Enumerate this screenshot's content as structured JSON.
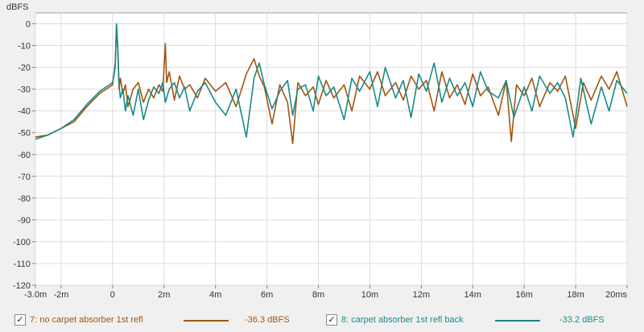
{
  "chart_data": {
    "type": "line",
    "ylabel": "dBFS",
    "x_unit": "ms",
    "xlim": [
      -3.0,
      20.0
    ],
    "ylim": [
      -120,
      5
    ],
    "x_ticks": [
      {
        "v": -3.0,
        "label": "-3.0m"
      },
      {
        "v": -2,
        "label": "-2m"
      },
      {
        "v": 0,
        "label": "0"
      },
      {
        "v": 2,
        "label": "2m"
      },
      {
        "v": 4,
        "label": "4m"
      },
      {
        "v": 6,
        "label": "6m"
      },
      {
        "v": 8,
        "label": "8m"
      },
      {
        "v": 10,
        "label": "10m"
      },
      {
        "v": 12,
        "label": "12m"
      },
      {
        "v": 14,
        "label": "14m"
      },
      {
        "v": 16,
        "label": "16m"
      },
      {
        "v": 18,
        "label": "18m"
      },
      {
        "v": 20,
        "label": "20ms"
      }
    ],
    "y_ticks": [
      0,
      -10,
      -20,
      -30,
      -40,
      -50,
      -60,
      -70,
      -80,
      -90,
      -100,
      -110,
      -120
    ],
    "grid": true,
    "series": [
      {
        "name": "7: no carpet absorber 1st refl",
        "color": "#a0560f",
        "legend_value": "-36.3 dBFS",
        "x": [
          -3.0,
          -2.5,
          -2.0,
          -1.5,
          -1.0,
          -0.5,
          0.0,
          0.1,
          0.15,
          0.2,
          0.25,
          0.3,
          0.4,
          0.5,
          0.6,
          0.8,
          1.0,
          1.2,
          1.4,
          1.6,
          1.8,
          1.95,
          2.05,
          2.1,
          2.2,
          2.4,
          2.6,
          2.8,
          3.0,
          3.3,
          3.6,
          4.0,
          4.4,
          4.8,
          5.2,
          5.5,
          5.7,
          5.9,
          6.2,
          6.5,
          6.8,
          7.0,
          7.2,
          7.5,
          7.8,
          8.0,
          8.3,
          8.6,
          9.0,
          9.3,
          9.6,
          10.0,
          10.3,
          10.6,
          11.0,
          11.3,
          11.6,
          11.9,
          12.2,
          12.5,
          12.8,
          13.1,
          13.4,
          13.7,
          14.0,
          14.3,
          14.6,
          15.0,
          15.3,
          15.5,
          15.7,
          16.0,
          16.3,
          16.6,
          17.0,
          17.3,
          17.6,
          18.0,
          18.3,
          18.6,
          19.0,
          19.3,
          19.6,
          20.0
        ],
        "y": [
          -52,
          -51,
          -48,
          -45,
          -38,
          -32,
          -28,
          -18,
          -1,
          -12,
          -30,
          -25,
          -32,
          -28,
          -38,
          -30,
          -27,
          -36,
          -30,
          -34,
          -28,
          -31,
          -9,
          -27,
          -22,
          -35,
          -24,
          -30,
          -28,
          -34,
          -25,
          -31,
          -27,
          -38,
          -23,
          -16,
          -24,
          -29,
          -46,
          -28,
          -36,
          -55,
          -27,
          -33,
          -29,
          -37,
          -26,
          -34,
          -28,
          -40,
          -24,
          -30,
          -22,
          -33,
          -27,
          -35,
          -24,
          -30,
          -26,
          -40,
          -22,
          -34,
          -28,
          -37,
          -23,
          -33,
          -29,
          -42,
          -26,
          -54,
          -28,
          -33,
          -25,
          -38,
          -27,
          -31,
          -24,
          -48,
          -27,
          -35,
          -24,
          -30,
          -22,
          -38
        ]
      },
      {
        "name": "8: carpet absorber 1st refl back",
        "color": "#1a8a8a",
        "legend_value": "-33.2 dBFS",
        "x": [
          -3.0,
          -2.5,
          -2.0,
          -1.5,
          -1.0,
          -0.5,
          0.0,
          0.1,
          0.15,
          0.2,
          0.25,
          0.3,
          0.4,
          0.5,
          0.6,
          0.8,
          1.0,
          1.2,
          1.4,
          1.6,
          1.8,
          1.95,
          2.05,
          2.2,
          2.4,
          2.6,
          2.8,
          3.0,
          3.3,
          3.6,
          4.0,
          4.4,
          4.8,
          5.2,
          5.5,
          5.7,
          5.9,
          6.2,
          6.5,
          6.8,
          7.0,
          7.2,
          7.5,
          7.8,
          8.0,
          8.3,
          8.6,
          9.0,
          9.3,
          9.6,
          10.0,
          10.3,
          10.6,
          11.0,
          11.3,
          11.6,
          11.9,
          12.2,
          12.5,
          12.8,
          13.1,
          13.4,
          13.7,
          14.0,
          14.3,
          14.6,
          15.0,
          15.3,
          15.6,
          16.0,
          16.3,
          16.6,
          17.0,
          17.3,
          17.6,
          17.9,
          18.2,
          18.6,
          19.0,
          19.3,
          19.6,
          20.0
        ],
        "y": [
          -53,
          -51,
          -48,
          -44,
          -37,
          -31,
          -27,
          -20,
          0,
          -10,
          -28,
          -34,
          -30,
          -40,
          -33,
          -42,
          -30,
          -44,
          -35,
          -29,
          -32,
          -27,
          -36,
          -30,
          -27,
          -34,
          -29,
          -40,
          -31,
          -27,
          -36,
          -42,
          -30,
          -52,
          -25,
          -18,
          -28,
          -39,
          -31,
          -26,
          -42,
          -30,
          -28,
          -40,
          -24,
          -33,
          -29,
          -44,
          -25,
          -31,
          -22,
          -38,
          -20,
          -34,
          -26,
          -43,
          -23,
          -31,
          -18,
          -36,
          -25,
          -33,
          -27,
          -38,
          -22,
          -31,
          -34,
          -26,
          -43,
          -29,
          -40,
          -24,
          -32,
          -27,
          -34,
          -52,
          -25,
          -46,
          -29,
          -40,
          -26,
          -32
        ]
      }
    ]
  }
}
